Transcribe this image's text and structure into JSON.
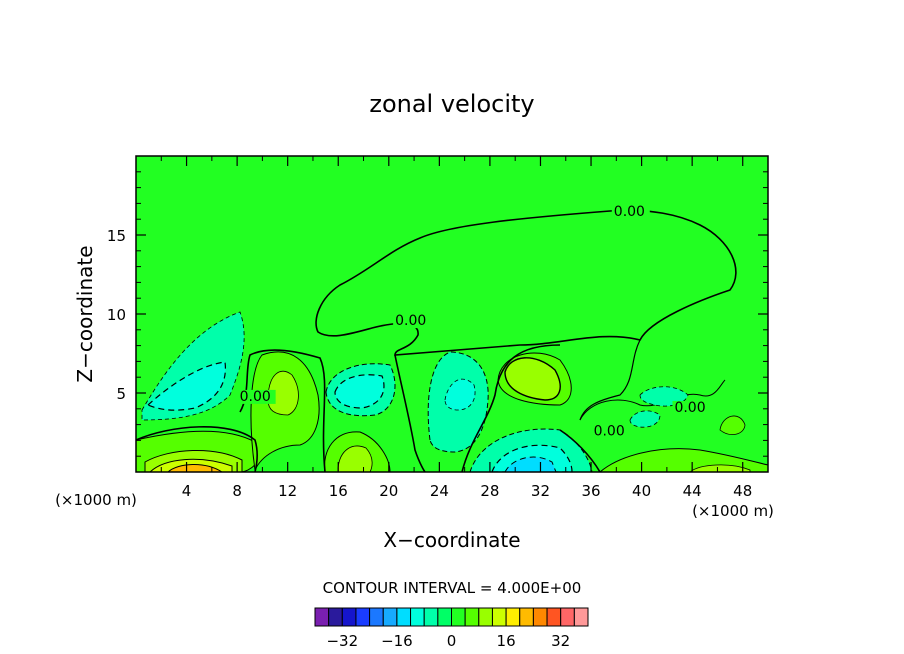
{
  "chart_data": {
    "type": "heatmap",
    "title": "zonal velocity",
    "xlabel": "X−coordinate",
    "ylabel": "Z−coordinate",
    "x_unit_left": "(×1000 m)",
    "x_unit_right": "(×1000 m)",
    "xlim": [
      0,
      50
    ],
    "ylim": [
      0,
      20
    ],
    "x_ticks": [
      4,
      8,
      12,
      16,
      20,
      24,
      28,
      32,
      36,
      40,
      44,
      48
    ],
    "y_ticks": [
      5,
      10,
      15
    ],
    "contour_interval_text": "CONTOUR INTERVAL = 4.000E+00",
    "contour_interval": 4,
    "zero_label": "0.00",
    "background_color": "#22ff22",
    "colorbar": {
      "levels": [
        -36,
        -32,
        -28,
        -24,
        -20,
        -16,
        -12,
        -8,
        -4,
        0,
        4,
        8,
        12,
        16,
        20,
        24,
        28,
        32,
        36
      ],
      "colors": [
        "#7a1fb0",
        "#2a1a9c",
        "#1515cc",
        "#1a3cff",
        "#1b78ff",
        "#17aaff",
        "#00ddff",
        "#00ffdd",
        "#00ffaa",
        "#00ff66",
        "#22ff22",
        "#55ff00",
        "#99ff00",
        "#ccff00",
        "#ffee00",
        "#ffbb00",
        "#ff8800",
        "#ff5522",
        "#ff6666",
        "#ff9999"
      ],
      "tick_values": [
        -32,
        -16,
        0,
        16,
        32
      ],
      "tick_labels": [
        "−32",
        "−16",
        "0",
        "16",
        "32"
      ]
    },
    "features": [
      {
        "kind": "cell",
        "x": 5,
        "z": 0.4,
        "value": 20
      },
      {
        "kind": "cell",
        "x": 4,
        "z": 1.3,
        "value": 12
      },
      {
        "kind": "cell",
        "x": 3,
        "z": 2.6,
        "value": -4
      },
      {
        "kind": "cell",
        "x": 5,
        "z": 7,
        "value": -8
      },
      {
        "kind": "cell",
        "x": 12,
        "z": 5.2,
        "value": 8
      },
      {
        "kind": "cell",
        "x": 12,
        "z": 1.5,
        "value": 4
      },
      {
        "kind": "cell",
        "x": 17,
        "z": 5.3,
        "value": -8
      },
      {
        "kind": "cell",
        "x": 18,
        "z": 1.6,
        "value": 8
      },
      {
        "kind": "cell",
        "x": 25.5,
        "z": 5.3,
        "value": -4
      },
      {
        "kind": "cell",
        "x": 30.5,
        "z": 6.0,
        "value": 12
      },
      {
        "kind": "cell",
        "x": 30.5,
        "z": 1.2,
        "value": -12
      },
      {
        "kind": "cell",
        "x": 47,
        "z": 0.4,
        "value": 8
      }
    ],
    "zero_label_positions": [
      [
        37.8,
        16.2
      ],
      [
        20.5,
        9.3
      ],
      [
        8.2,
        4.5
      ],
      [
        36.2,
        2.3
      ],
      [
        42.6,
        3.8
      ]
    ]
  }
}
